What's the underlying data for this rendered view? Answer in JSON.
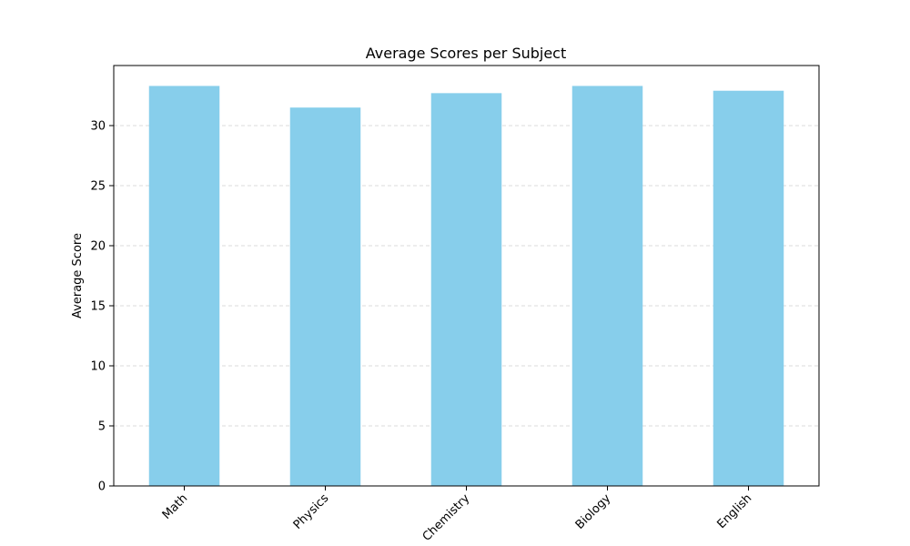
{
  "chart_data": {
    "type": "bar",
    "title": "Average Scores per Subject",
    "xlabel": "",
    "ylabel": "Average Score",
    "categories": [
      "Math",
      "Physics",
      "Chemistry",
      "Biology",
      "English"
    ],
    "values": [
      33.3,
      31.5,
      32.7,
      33.3,
      32.9
    ],
    "ylim": [
      0,
      35
    ],
    "yticks": [
      0,
      5,
      10,
      15,
      20,
      25,
      30
    ],
    "grid": "y-dashed",
    "bar_color": "#87ceeb",
    "xtick_rotation_deg": 45
  }
}
